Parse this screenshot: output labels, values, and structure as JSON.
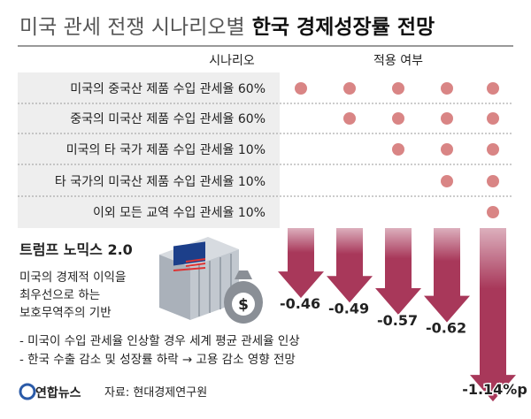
{
  "header": {
    "title_light": "미국 관세 전쟁 시나리오별",
    "title_bold": "한국 경제성장률 전망"
  },
  "table": {
    "columns": [
      "시나리오",
      "적용 여부"
    ],
    "rows": [
      {
        "label": "미국의 중국산 제품 수입 관세율 60%",
        "applied": [
          true,
          true,
          true,
          true,
          true
        ]
      },
      {
        "label": "중국의 미국산 제품 수입 관세율 60%",
        "applied": [
          false,
          true,
          true,
          true,
          true
        ]
      },
      {
        "label": "미국의 타 국가 제품 수입 관세율 10%",
        "applied": [
          false,
          false,
          true,
          true,
          true
        ]
      },
      {
        "label": "타 국가의 미국산 제품 수입 관세율 10%",
        "applied": [
          false,
          false,
          false,
          true,
          true
        ]
      },
      {
        "label": "이외 모든 교역 수입 관세율 10%",
        "applied": [
          false,
          false,
          false,
          false,
          true
        ]
      }
    ]
  },
  "chart_data": {
    "type": "arrow",
    "values": [
      -0.46,
      -0.49,
      -0.57,
      -0.62,
      -1.14
    ],
    "value_labels": [
      "-0.46",
      "-0.49",
      "-0.57",
      "-0.62",
      "-1.14%p"
    ],
    "color": "#a8385a"
  },
  "info": {
    "title": "트럼프 노믹스 2.0",
    "lines": [
      "미국의 경제적 이익을",
      "최우선으로 하는",
      "보호무역주의 기반"
    ],
    "notes": [
      "- 미국이 수입 관세율 인상할 경우 세계 평균 관세율 인상",
      "- 한국 수출 감소 및 성장률 하락 → 고용 감소 영향 전망"
    ]
  },
  "footer": {
    "logo": "연합뉴스",
    "source": "자료: 현대경제연구원"
  }
}
